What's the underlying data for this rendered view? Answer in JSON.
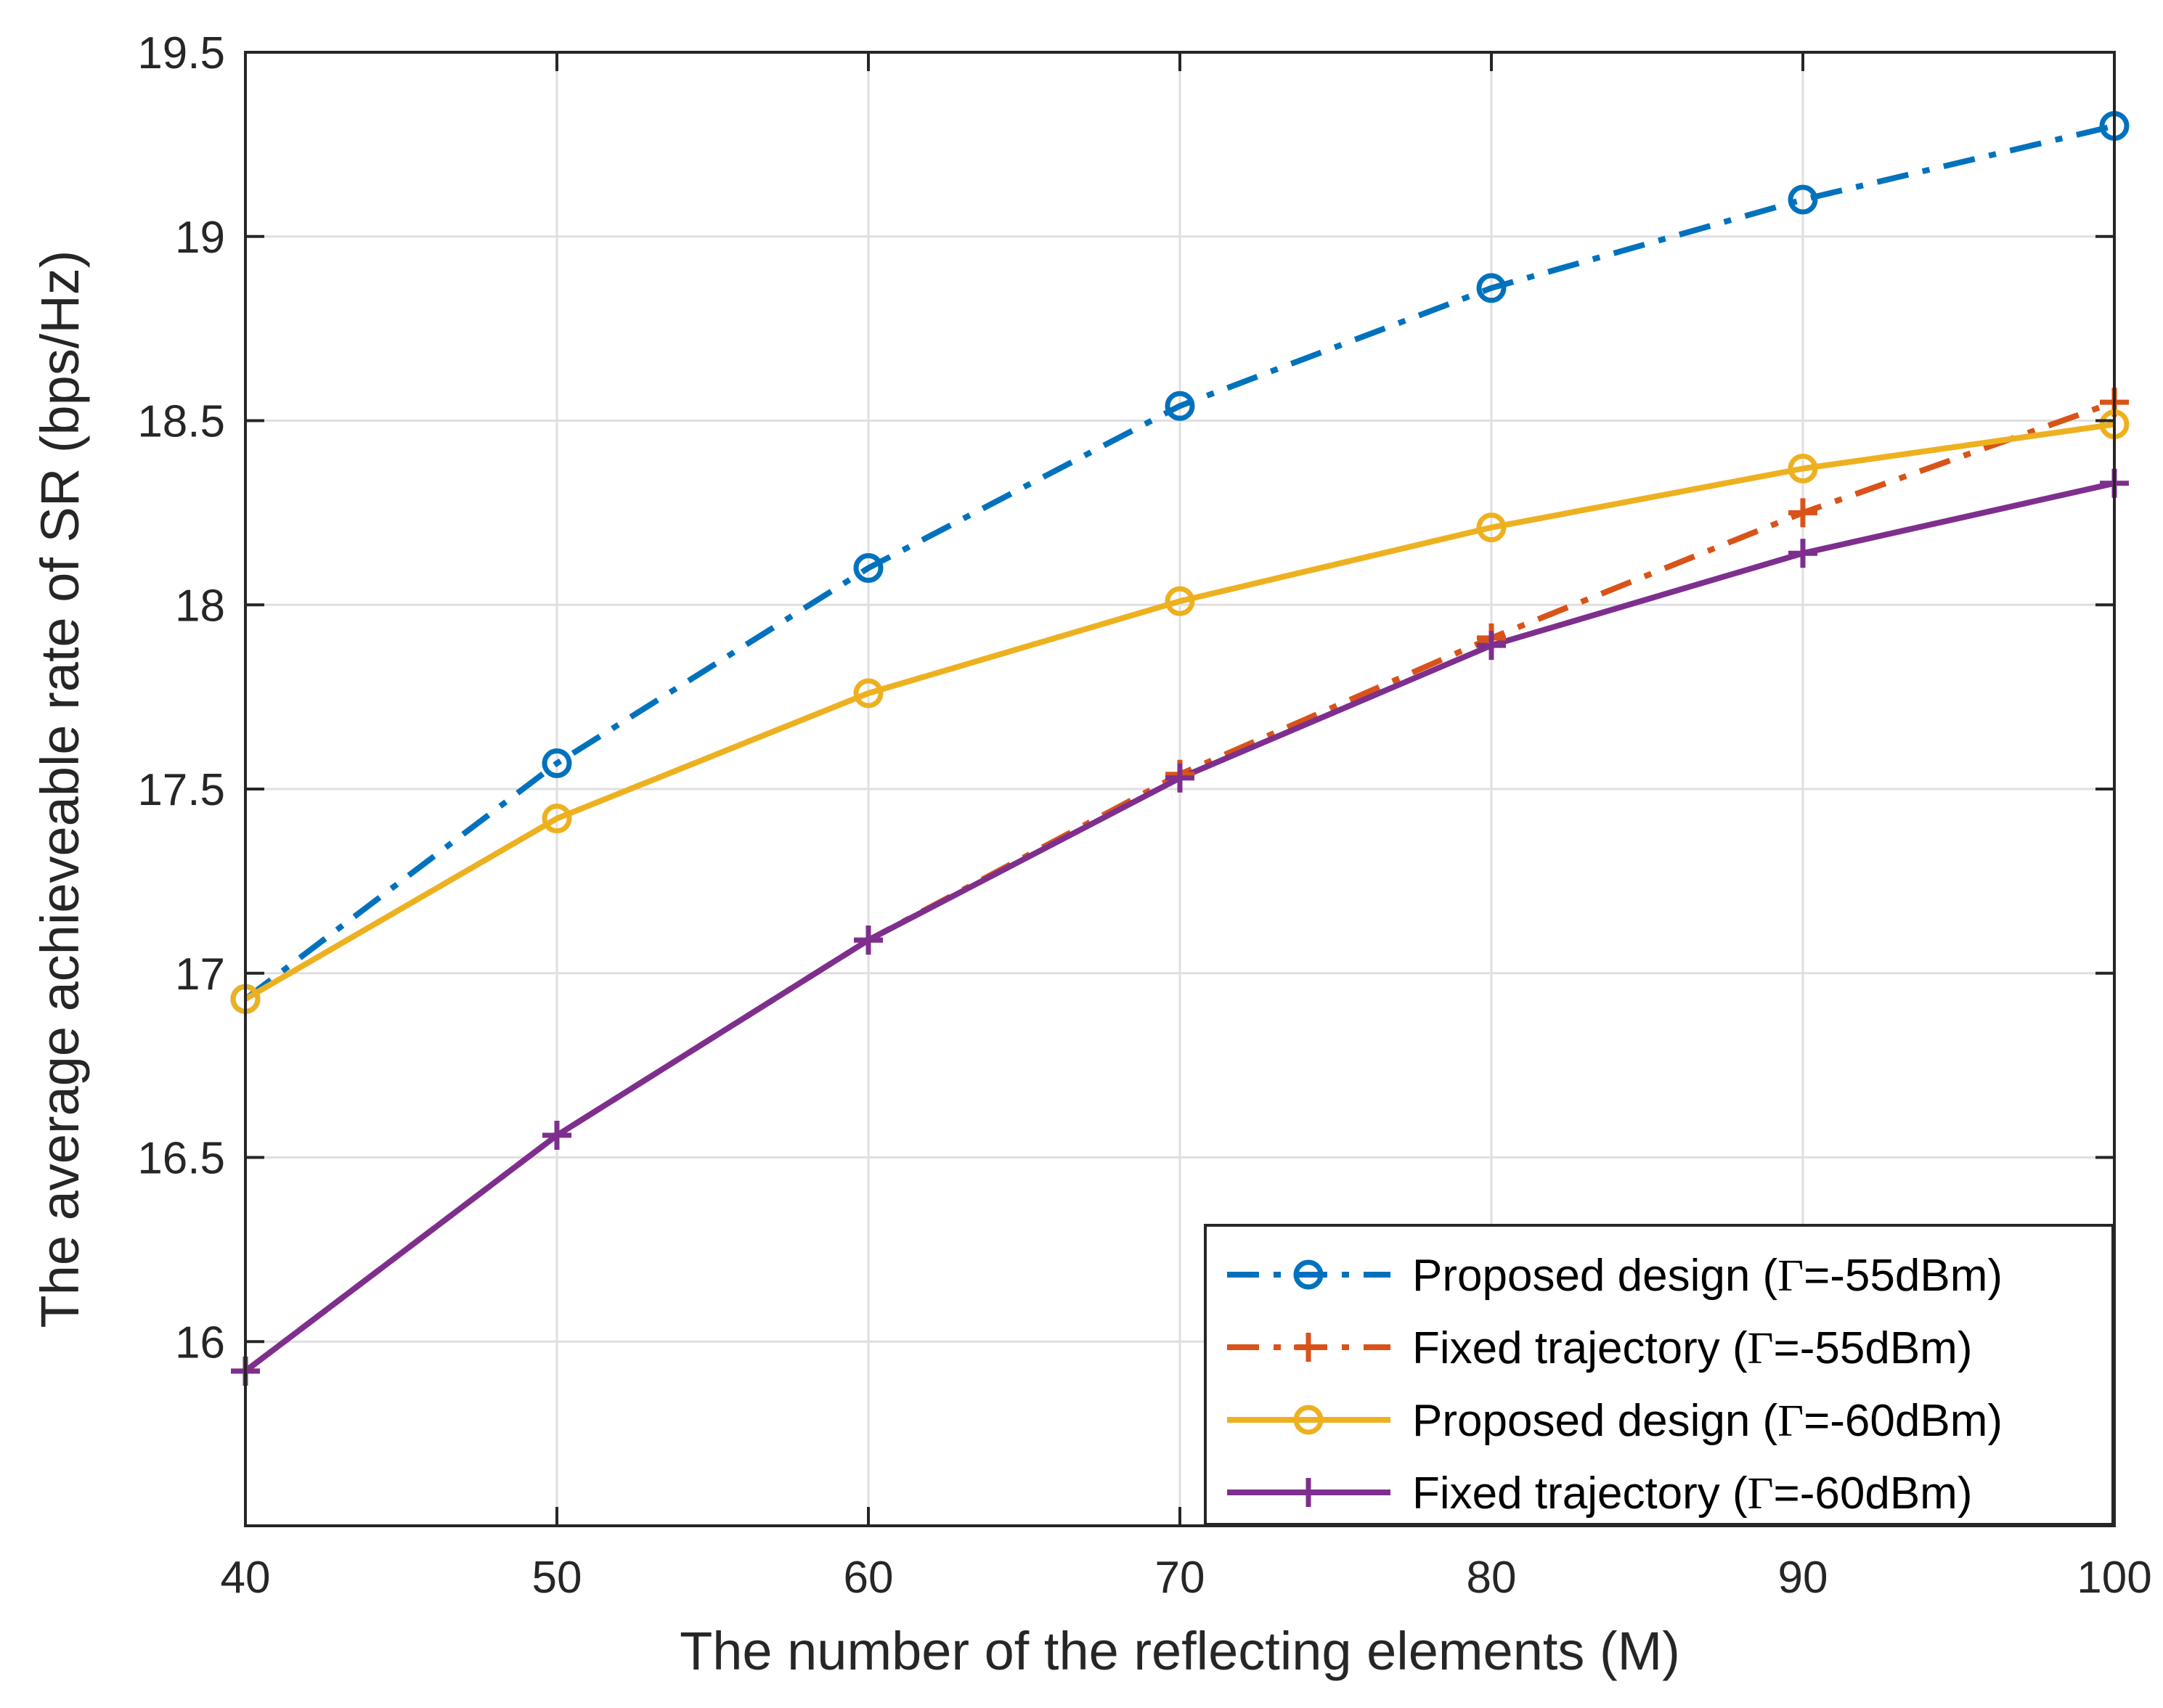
{
  "chart_data": {
    "type": "line",
    "title": "",
    "xlabel": "The number of the reflecting elements (M)",
    "ylabel": "The average achieveable rate of SR (bps/Hz)",
    "xlim": [
      40,
      100
    ],
    "ylim": [
      15.5,
      19.5
    ],
    "xticks": [
      40,
      50,
      60,
      70,
      80,
      90,
      100
    ],
    "yticks": [
      16,
      16.5,
      17,
      17.5,
      18,
      18.5,
      19,
      19.5
    ],
    "xtick_labels": [
      "40",
      "50",
      "60",
      "70",
      "80",
      "90",
      "100"
    ],
    "ytick_labels": [
      "16",
      "16.5",
      "17",
      "17.5",
      "18",
      "18.5",
      "19",
      "19.5"
    ],
    "grid": true,
    "legend_position": "bottom-right",
    "x": [
      40,
      50,
      60,
      70,
      80,
      90,
      100
    ],
    "series": [
      {
        "name": "Proposed design (Γ=-55dBm)",
        "label_prefix": "Proposed design (",
        "label_symbol": "Γ",
        "label_suffix": "=-55dBm)",
        "color": "#0072BD",
        "line_style": "dash-dot",
        "marker": "circle",
        "values": [
          16.93,
          17.57,
          18.1,
          18.54,
          18.86,
          19.1,
          19.3
        ]
      },
      {
        "name": "Fixed trajectory (Γ=-55dBm)",
        "label_prefix": "Fixed trajectory (",
        "label_symbol": "Γ",
        "label_suffix": "=-55dBm)",
        "color": "#D95319",
        "line_style": "dash-dot",
        "marker": "plus",
        "values": [
          15.92,
          16.56,
          17.09,
          17.54,
          17.91,
          18.25,
          18.55
        ]
      },
      {
        "name": "Proposed design (Γ=-60dBm)",
        "label_prefix": "Proposed design (",
        "label_symbol": "Γ",
        "label_suffix": "=-60dBm)",
        "color": "#EDB120",
        "line_style": "solid",
        "marker": "circle",
        "values": [
          16.93,
          17.42,
          17.76,
          18.01,
          18.21,
          18.37,
          18.49
        ]
      },
      {
        "name": "Fixed trajectory (Γ=-60dBm)",
        "label_prefix": "Fixed trajectory (",
        "label_symbol": "Γ",
        "label_suffix": "=-60dBm)",
        "color": "#7E2F8E",
        "line_style": "solid",
        "marker": "plus",
        "values": [
          15.92,
          16.56,
          17.09,
          17.53,
          17.89,
          18.14,
          18.33
        ]
      }
    ]
  }
}
